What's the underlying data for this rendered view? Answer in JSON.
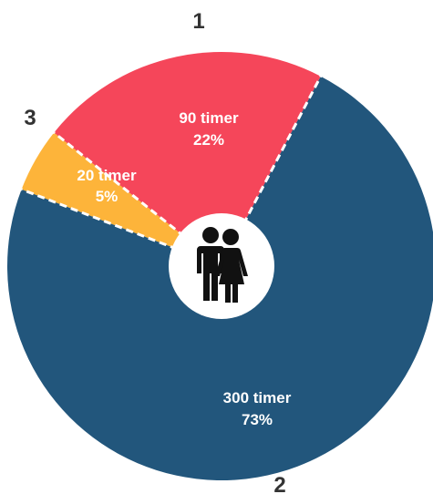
{
  "chart_data": {
    "type": "pie",
    "categories": [
      "1",
      "2",
      "3"
    ],
    "values": [
      90,
      300,
      20
    ],
    "labels": [
      "90 timer",
      "300 timer",
      "20 timer"
    ],
    "percent_labels": [
      "22%",
      "73%",
      "5%"
    ],
    "colors": [
      "#f5465a",
      "#22567c",
      "#fdb43a"
    ],
    "center_icon": "couple-icon",
    "legend": "none"
  }
}
